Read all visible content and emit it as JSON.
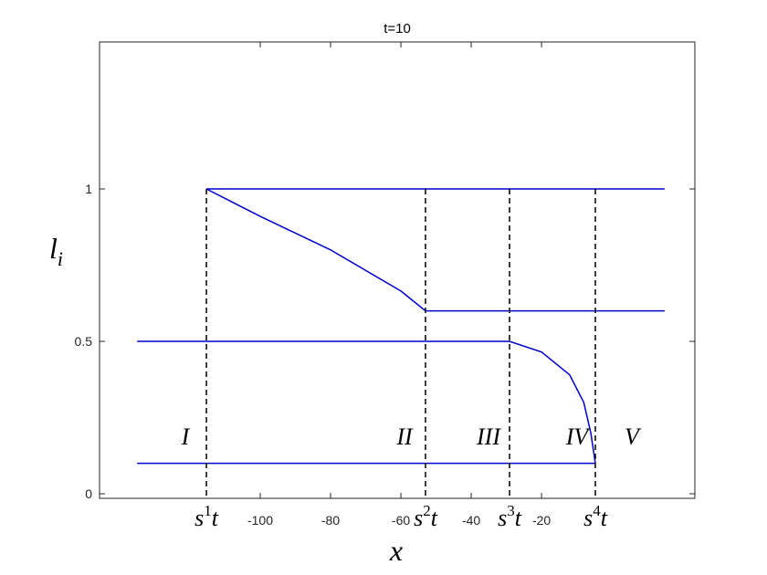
{
  "chart_data": {
    "type": "line",
    "title": "t=10",
    "xlabel": "x",
    "ylabel": [
      "l",
      "i"
    ],
    "xlim": [
      -145.7,
      23.6
    ],
    "ylim": [
      -0.015,
      1.482
    ],
    "xticks": [
      -100,
      -80,
      -60,
      -40,
      -20
    ],
    "yticks": [
      0,
      0.5,
      1
    ],
    "series": [
      {
        "color": "#0000cc",
        "x": [
          -115.3,
          15
        ],
        "values": [
          1,
          1
        ]
      },
      {
        "color": "#0000cc",
        "x": [
          -115.3,
          -100,
          -80,
          -60,
          -53.0,
          15
        ],
        "values": [
          1,
          0.91,
          0.8,
          0.665,
          0.6,
          0.6
        ]
      },
      {
        "color": "#0000cc",
        "x": [
          -135,
          -29.1,
          -20,
          -12,
          -8,
          -6,
          -4.7
        ],
        "values": [
          0.5,
          0.5,
          0.465,
          0.39,
          0.3,
          0.2,
          0.1
        ]
      },
      {
        "color": "#0000cc",
        "x": [
          -135,
          -4.7
        ],
        "values": [
          0.1,
          0.1
        ]
      }
    ],
    "shocks": {
      "x": [
        -115.3,
        -53.0,
        -29.1,
        -4.7
      ],
      "labels": [
        [
          "s",
          "1",
          "t"
        ],
        [
          "s",
          "2",
          "t"
        ],
        [
          "s",
          "3",
          "t"
        ],
        [
          "s",
          "4",
          "t"
        ]
      ]
    },
    "regions": [
      "I",
      "II",
      "III",
      "IV",
      "V"
    ]
  }
}
